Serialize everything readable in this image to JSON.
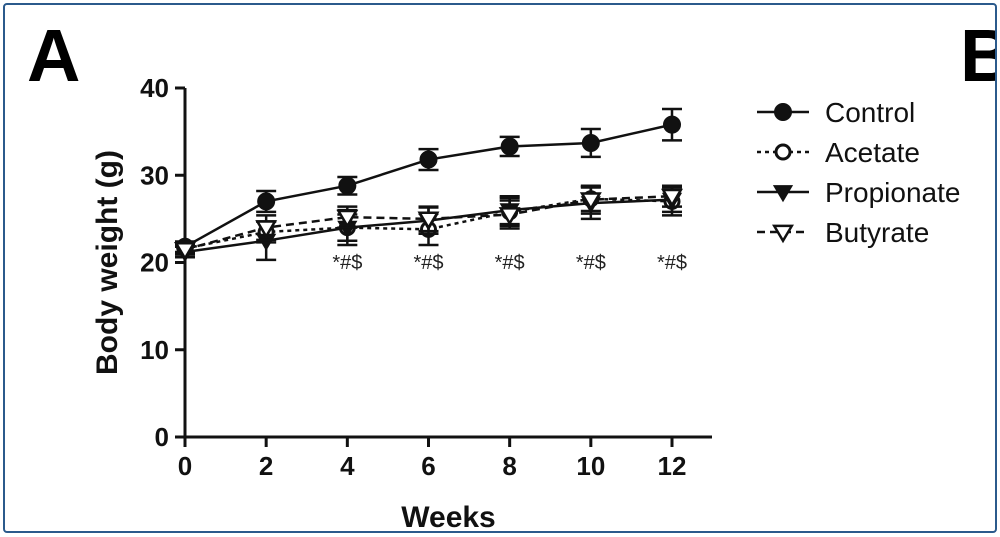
{
  "panel_label_left": "A",
  "panel_label_right": "B",
  "chart_data": {
    "type": "line",
    "xlabel": "Weeks",
    "ylabel": "Body weight (g)",
    "xlim": [
      0,
      12
    ],
    "ylim": [
      0,
      40
    ],
    "xticks": [
      "0",
      "2",
      "4",
      "6",
      "8",
      "10",
      "12"
    ],
    "yticks": [
      "0",
      "10",
      "20",
      "30",
      "40"
    ],
    "x": [
      0,
      2,
      4,
      6,
      8,
      10,
      12
    ],
    "legend_position": "right",
    "series": [
      {
        "name": "Control",
        "values": [
          21.8,
          27.0,
          28.8,
          31.8,
          33.3,
          33.7,
          35.8
        ],
        "errors": [
          0.6,
          1.2,
          1.0,
          1.2,
          1.1,
          1.6,
          1.8
        ],
        "marker": "circle-filled",
        "line": "solid"
      },
      {
        "name": "Acetate",
        "values": [
          21.6,
          23.5,
          24.0,
          23.8,
          25.8,
          27.3,
          27.0
        ],
        "errors": [
          0.6,
          1.2,
          2.0,
          1.8,
          1.6,
          1.4,
          1.6
        ],
        "marker": "circle-open",
        "line": "dashed"
      },
      {
        "name": "Propionate",
        "values": [
          21.2,
          22.5,
          24.0,
          24.8,
          26.0,
          26.8,
          27.2
        ],
        "errors": [
          0.6,
          2.2,
          1.5,
          1.5,
          1.6,
          1.8,
          1.4
        ],
        "marker": "triangle-filled",
        "line": "solid"
      },
      {
        "name": "Butyrate",
        "values": [
          21.5,
          24.0,
          25.2,
          25.0,
          25.5,
          27.2,
          27.6
        ],
        "errors": [
          0.6,
          1.4,
          1.2,
          1.4,
          1.6,
          1.6,
          1.2
        ],
        "marker": "triangle-open",
        "line": "dashed"
      }
    ],
    "annotations": [
      {
        "x": 4,
        "text": "*#$"
      },
      {
        "x": 6,
        "text": "*#$"
      },
      {
        "x": 8,
        "text": "*#$"
      },
      {
        "x": 10,
        "text": "*#$"
      },
      {
        "x": 12,
        "text": "*#$"
      }
    ]
  }
}
